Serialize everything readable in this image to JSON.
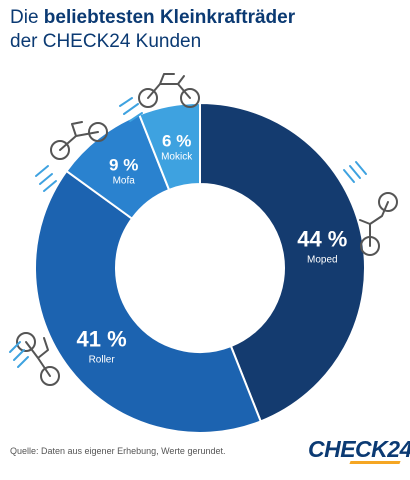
{
  "header": {
    "title_prefix": "Die ",
    "title_bold": "beliebtesten Kleinkrafträder",
    "title_line2": "der CHECK24 Kunden"
  },
  "chart_data": {
    "type": "pie",
    "categories": [
      "Moped",
      "Roller",
      "Mofa",
      "Mokick"
    ],
    "values": [
      44,
      41,
      9,
      6
    ],
    "value_labels": [
      "44 %",
      "41 %",
      "9 %",
      "6 %"
    ],
    "colors": [
      "#143b6f",
      "#1c63b0",
      "#2a82cf",
      "#3ea2e0"
    ],
    "title": "",
    "legend": "none",
    "grid": false
  },
  "icons": [
    "motorcycle-icon",
    "motorcycle-icon",
    "motorcycle-icon",
    "motorcycle-icon",
    "motorcycle-icon"
  ],
  "footer": {
    "source": "Quelle: Daten aus eigener Erhebung, Werte gerundet.",
    "logo": "CHECK24"
  }
}
